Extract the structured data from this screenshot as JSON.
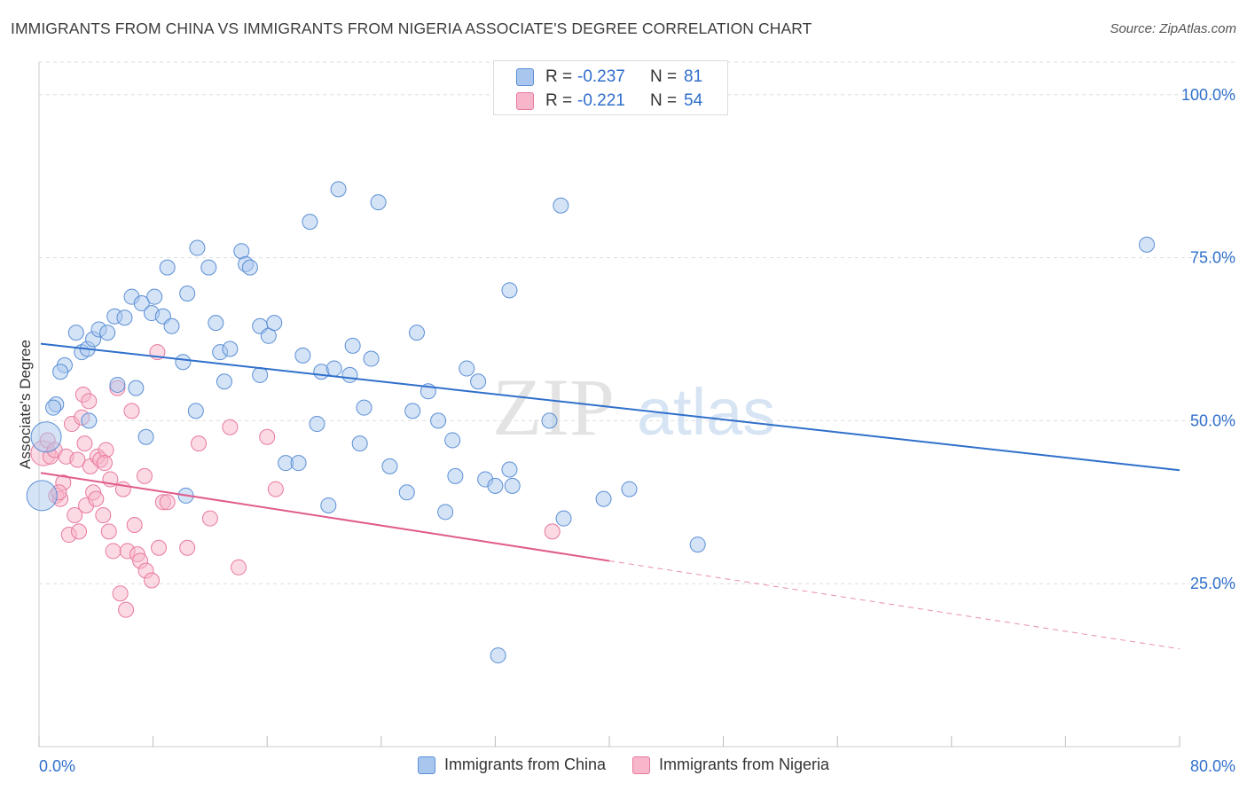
{
  "title": "IMMIGRANTS FROM CHINA VS IMMIGRANTS FROM NIGERIA ASSOCIATE'S DEGREE CORRELATION CHART",
  "source": "Source: ZipAtlas.com",
  "watermark": {
    "zip": "ZIP",
    "atlas": "atlas"
  },
  "colors": {
    "china_fill": "#a9c7ee",
    "china_stroke": "#5b8fd6",
    "china_line": "#2f6fcb",
    "nigeria_fill": "#f7b6c9",
    "nigeria_stroke": "#e8799e",
    "nigeria_line": "#e05c8c",
    "tick_label": "#2f6fcb",
    "grid": "#dddddd"
  },
  "stats": [
    {
      "r_label": "R =",
      "r_value": "-0.237",
      "n_label": "N =",
      "n_value": "81",
      "series": "china"
    },
    {
      "r_label": "R =",
      "r_value": "-0.221",
      "n_label": "N =",
      "n_value": "54",
      "series": "nigeria"
    }
  ],
  "chart_data": {
    "type": "scatter",
    "title": "IMMIGRANTS FROM CHINA VS IMMIGRANTS FROM NIGERIA ASSOCIATE'S DEGREE CORRELATION CHART",
    "xlabel": "",
    "ylabel": "Associate's Degree",
    "xlim": [
      0,
      80
    ],
    "ylim": [
      0,
      105
    ],
    "x_tick_labels": [
      "0.0%",
      "80.0%"
    ],
    "y_ticks": [
      25,
      50,
      75,
      100
    ],
    "y_tick_labels": [
      "25.0%",
      "50.0%",
      "75.0%",
      "100.0%"
    ],
    "grid": true,
    "legend_position": "bottom-center",
    "series": [
      {
        "name": "Immigrants from China",
        "trend": {
          "x": [
            0,
            80
          ],
          "y": [
            61.8,
            42.4
          ]
        },
        "points": [
          {
            "x": 0.2,
            "y": 38.5,
            "big": true
          },
          {
            "x": 0.5,
            "y": 47.5,
            "big": true
          },
          {
            "x": 1.2,
            "y": 52.5
          },
          {
            "x": 1.0,
            "y": 52.0
          },
          {
            "x": 1.8,
            "y": 58.5
          },
          {
            "x": 1.5,
            "y": 57.5
          },
          {
            "x": 2.6,
            "y": 63.5
          },
          {
            "x": 3.0,
            "y": 60.5
          },
          {
            "x": 3.4,
            "y": 61.0
          },
          {
            "x": 3.8,
            "y": 62.5
          },
          {
            "x": 4.2,
            "y": 64.0
          },
          {
            "x": 4.8,
            "y": 63.5
          },
          {
            "x": 5.3,
            "y": 66.0
          },
          {
            "x": 6.0,
            "y": 65.8
          },
          {
            "x": 6.5,
            "y": 69.0
          },
          {
            "x": 7.2,
            "y": 68.0
          },
          {
            "x": 7.9,
            "y": 66.5
          },
          {
            "x": 8.1,
            "y": 69.0
          },
          {
            "x": 8.7,
            "y": 66.0
          },
          {
            "x": 9.0,
            "y": 73.5
          },
          {
            "x": 9.3,
            "y": 64.5
          },
          {
            "x": 10.1,
            "y": 59.0
          },
          {
            "x": 10.4,
            "y": 69.5
          },
          {
            "x": 11.1,
            "y": 76.5
          },
          {
            "x": 11.9,
            "y": 73.5
          },
          {
            "x": 12.4,
            "y": 65.0
          },
          {
            "x": 12.7,
            "y": 60.5
          },
          {
            "x": 13.0,
            "y": 56.0
          },
          {
            "x": 13.4,
            "y": 61.0
          },
          {
            "x": 14.2,
            "y": 76.0
          },
          {
            "x": 14.5,
            "y": 74.0
          },
          {
            "x": 14.8,
            "y": 73.5
          },
          {
            "x": 15.5,
            "y": 64.5
          },
          {
            "x": 15.5,
            "y": 57.0
          },
          {
            "x": 16.1,
            "y": 63.0
          },
          {
            "x": 16.5,
            "y": 65.0
          },
          {
            "x": 17.3,
            "y": 43.5
          },
          {
            "x": 18.2,
            "y": 43.5
          },
          {
            "x": 18.5,
            "y": 60.0
          },
          {
            "x": 19.0,
            "y": 80.5
          },
          {
            "x": 19.5,
            "y": 49.5
          },
          {
            "x": 19.8,
            "y": 57.5
          },
          {
            "x": 20.3,
            "y": 37.0
          },
          {
            "x": 20.7,
            "y": 58.0
          },
          {
            "x": 21.0,
            "y": 85.5
          },
          {
            "x": 21.8,
            "y": 57.0
          },
          {
            "x": 22.0,
            "y": 61.5
          },
          {
            "x": 22.5,
            "y": 46.5
          },
          {
            "x": 22.8,
            "y": 52.0
          },
          {
            "x": 23.3,
            "y": 59.5
          },
          {
            "x": 23.8,
            "y": 83.5
          },
          {
            "x": 24.6,
            "y": 43.0
          },
          {
            "x": 25.8,
            "y": 39.0
          },
          {
            "x": 26.2,
            "y": 51.5
          },
          {
            "x": 26.5,
            "y": 63.5
          },
          {
            "x": 27.3,
            "y": 54.5
          },
          {
            "x": 28.0,
            "y": 50.0
          },
          {
            "x": 28.5,
            "y": 36.0
          },
          {
            "x": 29.0,
            "y": 47.0
          },
          {
            "x": 29.2,
            "y": 41.5
          },
          {
            "x": 30.0,
            "y": 58.0
          },
          {
            "x": 30.8,
            "y": 56.0
          },
          {
            "x": 31.3,
            "y": 41.0
          },
          {
            "x": 32.0,
            "y": 40.0
          },
          {
            "x": 32.2,
            "y": 14.0
          },
          {
            "x": 33.0,
            "y": 42.5
          },
          {
            "x": 33.2,
            "y": 40.0
          },
          {
            "x": 35.8,
            "y": 50.0
          },
          {
            "x": 36.6,
            "y": 83.0
          },
          {
            "x": 36.8,
            "y": 35.0
          },
          {
            "x": 39.6,
            "y": 38.0
          },
          {
            "x": 41.4,
            "y": 39.5
          },
          {
            "x": 46.2,
            "y": 31.0
          },
          {
            "x": 77.7,
            "y": 77.0
          },
          {
            "x": 33.0,
            "y": 70.0
          },
          {
            "x": 5.5,
            "y": 55.5
          },
          {
            "x": 6.8,
            "y": 55.0
          },
          {
            "x": 10.3,
            "y": 38.5
          },
          {
            "x": 11.0,
            "y": 51.5
          },
          {
            "x": 3.5,
            "y": 50.0
          },
          {
            "x": 7.5,
            "y": 47.5
          }
        ]
      },
      {
        "name": "Immigrants from Nigeria",
        "trend": {
          "x": [
            0,
            40
          ],
          "y": [
            42,
            28.5
          ]
        },
        "trend_dashed": {
          "x": [
            40,
            80
          ],
          "y": [
            28.5,
            15
          ]
        },
        "points": [
          {
            "x": 0.3,
            "y": 45.0,
            "big": true
          },
          {
            "x": 0.6,
            "y": 47.0
          },
          {
            "x": 0.8,
            "y": 44.5
          },
          {
            "x": 1.1,
            "y": 45.5
          },
          {
            "x": 1.2,
            "y": 38.5
          },
          {
            "x": 1.5,
            "y": 38.0
          },
          {
            "x": 1.7,
            "y": 40.5
          },
          {
            "x": 1.9,
            "y": 44.5
          },
          {
            "x": 2.1,
            "y": 32.5
          },
          {
            "x": 2.3,
            "y": 49.5
          },
          {
            "x": 2.5,
            "y": 35.5
          },
          {
            "x": 2.7,
            "y": 44.0
          },
          {
            "x": 2.8,
            "y": 33.0
          },
          {
            "x": 3.0,
            "y": 50.5
          },
          {
            "x": 3.1,
            "y": 54.0
          },
          {
            "x": 3.2,
            "y": 46.5
          },
          {
            "x": 3.3,
            "y": 37.0
          },
          {
            "x": 3.5,
            "y": 53.0
          },
          {
            "x": 3.6,
            "y": 43.0
          },
          {
            "x": 3.8,
            "y": 39.0
          },
          {
            "x": 4.0,
            "y": 38.0
          },
          {
            "x": 4.1,
            "y": 44.5
          },
          {
            "x": 4.3,
            "y": 44.0
          },
          {
            "x": 4.5,
            "y": 35.5
          },
          {
            "x": 4.7,
            "y": 45.5
          },
          {
            "x": 4.9,
            "y": 33.0
          },
          {
            "x": 5.0,
            "y": 41.0
          },
          {
            "x": 5.2,
            "y": 30.0
          },
          {
            "x": 5.5,
            "y": 55.0
          },
          {
            "x": 5.7,
            "y": 23.5
          },
          {
            "x": 5.9,
            "y": 39.5
          },
          {
            "x": 6.1,
            "y": 21.0
          },
          {
            "x": 6.2,
            "y": 30.0
          },
          {
            "x": 6.5,
            "y": 51.5
          },
          {
            "x": 6.7,
            "y": 34.0
          },
          {
            "x": 6.9,
            "y": 29.5
          },
          {
            "x": 7.1,
            "y": 28.5
          },
          {
            "x": 7.4,
            "y": 41.5
          },
          {
            "x": 7.5,
            "y": 27.0
          },
          {
            "x": 7.9,
            "y": 25.5
          },
          {
            "x": 8.3,
            "y": 60.5
          },
          {
            "x": 8.4,
            "y": 30.5
          },
          {
            "x": 8.7,
            "y": 37.5
          },
          {
            "x": 9.0,
            "y": 37.5
          },
          {
            "x": 10.4,
            "y": 30.5
          },
          {
            "x": 11.2,
            "y": 46.5
          },
          {
            "x": 12.0,
            "y": 35.0
          },
          {
            "x": 13.4,
            "y": 49.0
          },
          {
            "x": 14.0,
            "y": 27.5
          },
          {
            "x": 16.0,
            "y": 47.5
          },
          {
            "x": 16.6,
            "y": 39.5
          },
          {
            "x": 36.0,
            "y": 33.0
          },
          {
            "x": 1.4,
            "y": 39.0
          },
          {
            "x": 4.6,
            "y": 43.5
          }
        ]
      }
    ]
  },
  "legend": [
    {
      "label": "Immigrants from China",
      "series": "china"
    },
    {
      "label": "Immigrants from Nigeria",
      "series": "nigeria"
    }
  ]
}
